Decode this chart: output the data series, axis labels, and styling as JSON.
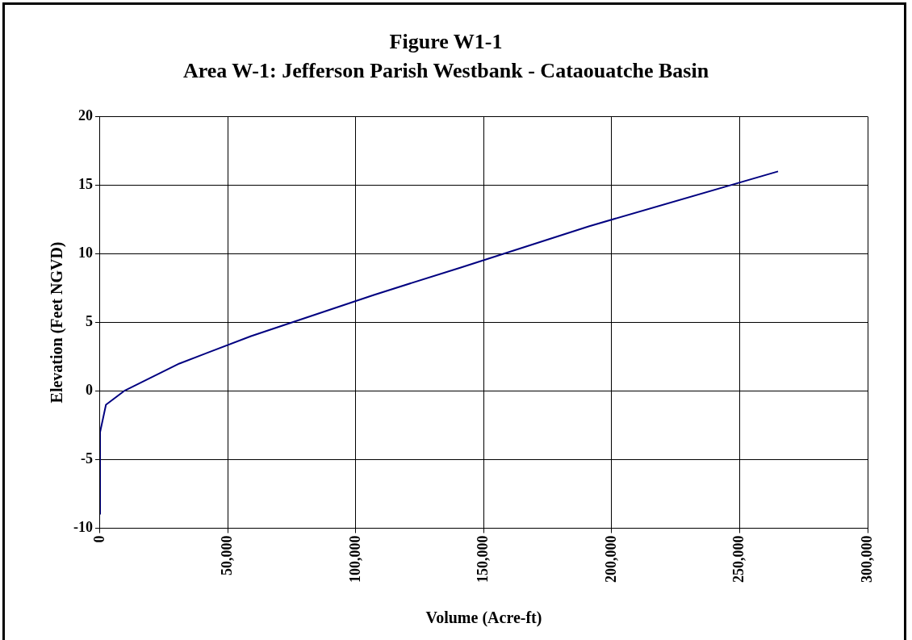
{
  "chart_data": {
    "type": "line",
    "title": "Figure W1-1",
    "subtitle": "Area W-1: Jefferson Parish Westbank - Cataouatche Basin",
    "xlabel": "Volume (Acre-ft)",
    "ylabel": "Elevation (Feet NGVD)",
    "x": [
      0,
      0,
      2300,
      9400,
      31000,
      59000,
      107000,
      141000,
      191000,
      265000
    ],
    "series": [
      {
        "color": "#000080",
        "values": [
          -9,
          -3,
          -1,
          0,
          2,
          4,
          7,
          9,
          12,
          16
        ]
      }
    ],
    "xlim": [
      0,
      300000
    ],
    "xticks": [
      0,
      {
        "value": 50000,
        "label": "50,000"
      },
      {
        "value": 100000,
        "label": "100,000"
      },
      {
        "value": 150000,
        "label": "150,000"
      },
      {
        "value": 200000,
        "label": "200,000"
      },
      {
        "value": 250000,
        "label": "250,000"
      },
      {
        "value": 300000,
        "label": "300,000"
      }
    ],
    "ylim": [
      -10,
      20
    ],
    "yticks": [
      -10,
      -5,
      0,
      5,
      10,
      15,
      20
    ],
    "grid": true,
    "legend": false,
    "marker": "none",
    "line_style": "solid"
  }
}
